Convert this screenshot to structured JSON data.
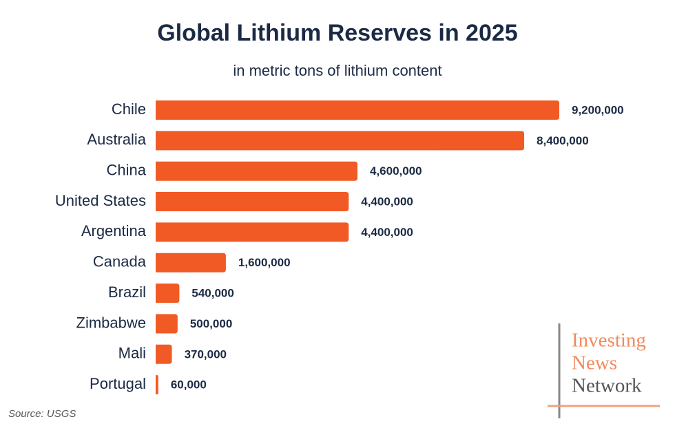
{
  "chart_data": {
    "type": "hbar",
    "title": "Global Lithium Reserves in 2025",
    "subtitle": "in metric tons of lithium content",
    "categories": [
      "Chile",
      "Australia",
      "China",
      "United States",
      "Argentina",
      "Canada",
      "Brazil",
      "Zimbabwe",
      "Mali",
      "Portugal"
    ],
    "values": [
      9200000,
      8400000,
      4600000,
      4400000,
      4400000,
      1600000,
      540000,
      500000,
      370000,
      60000
    ],
    "value_labels": [
      "9,200,000",
      "8,400,000",
      "4,600,000",
      "4,400,000",
      "4,400,000",
      "1,600,000",
      "540,000",
      "500,000",
      "370,000",
      "60,000"
    ],
    "color": "#f15a24",
    "source": "Source: USGS"
  },
  "logo": {
    "line1": "Investing",
    "line2": "News",
    "line3": "Network"
  }
}
